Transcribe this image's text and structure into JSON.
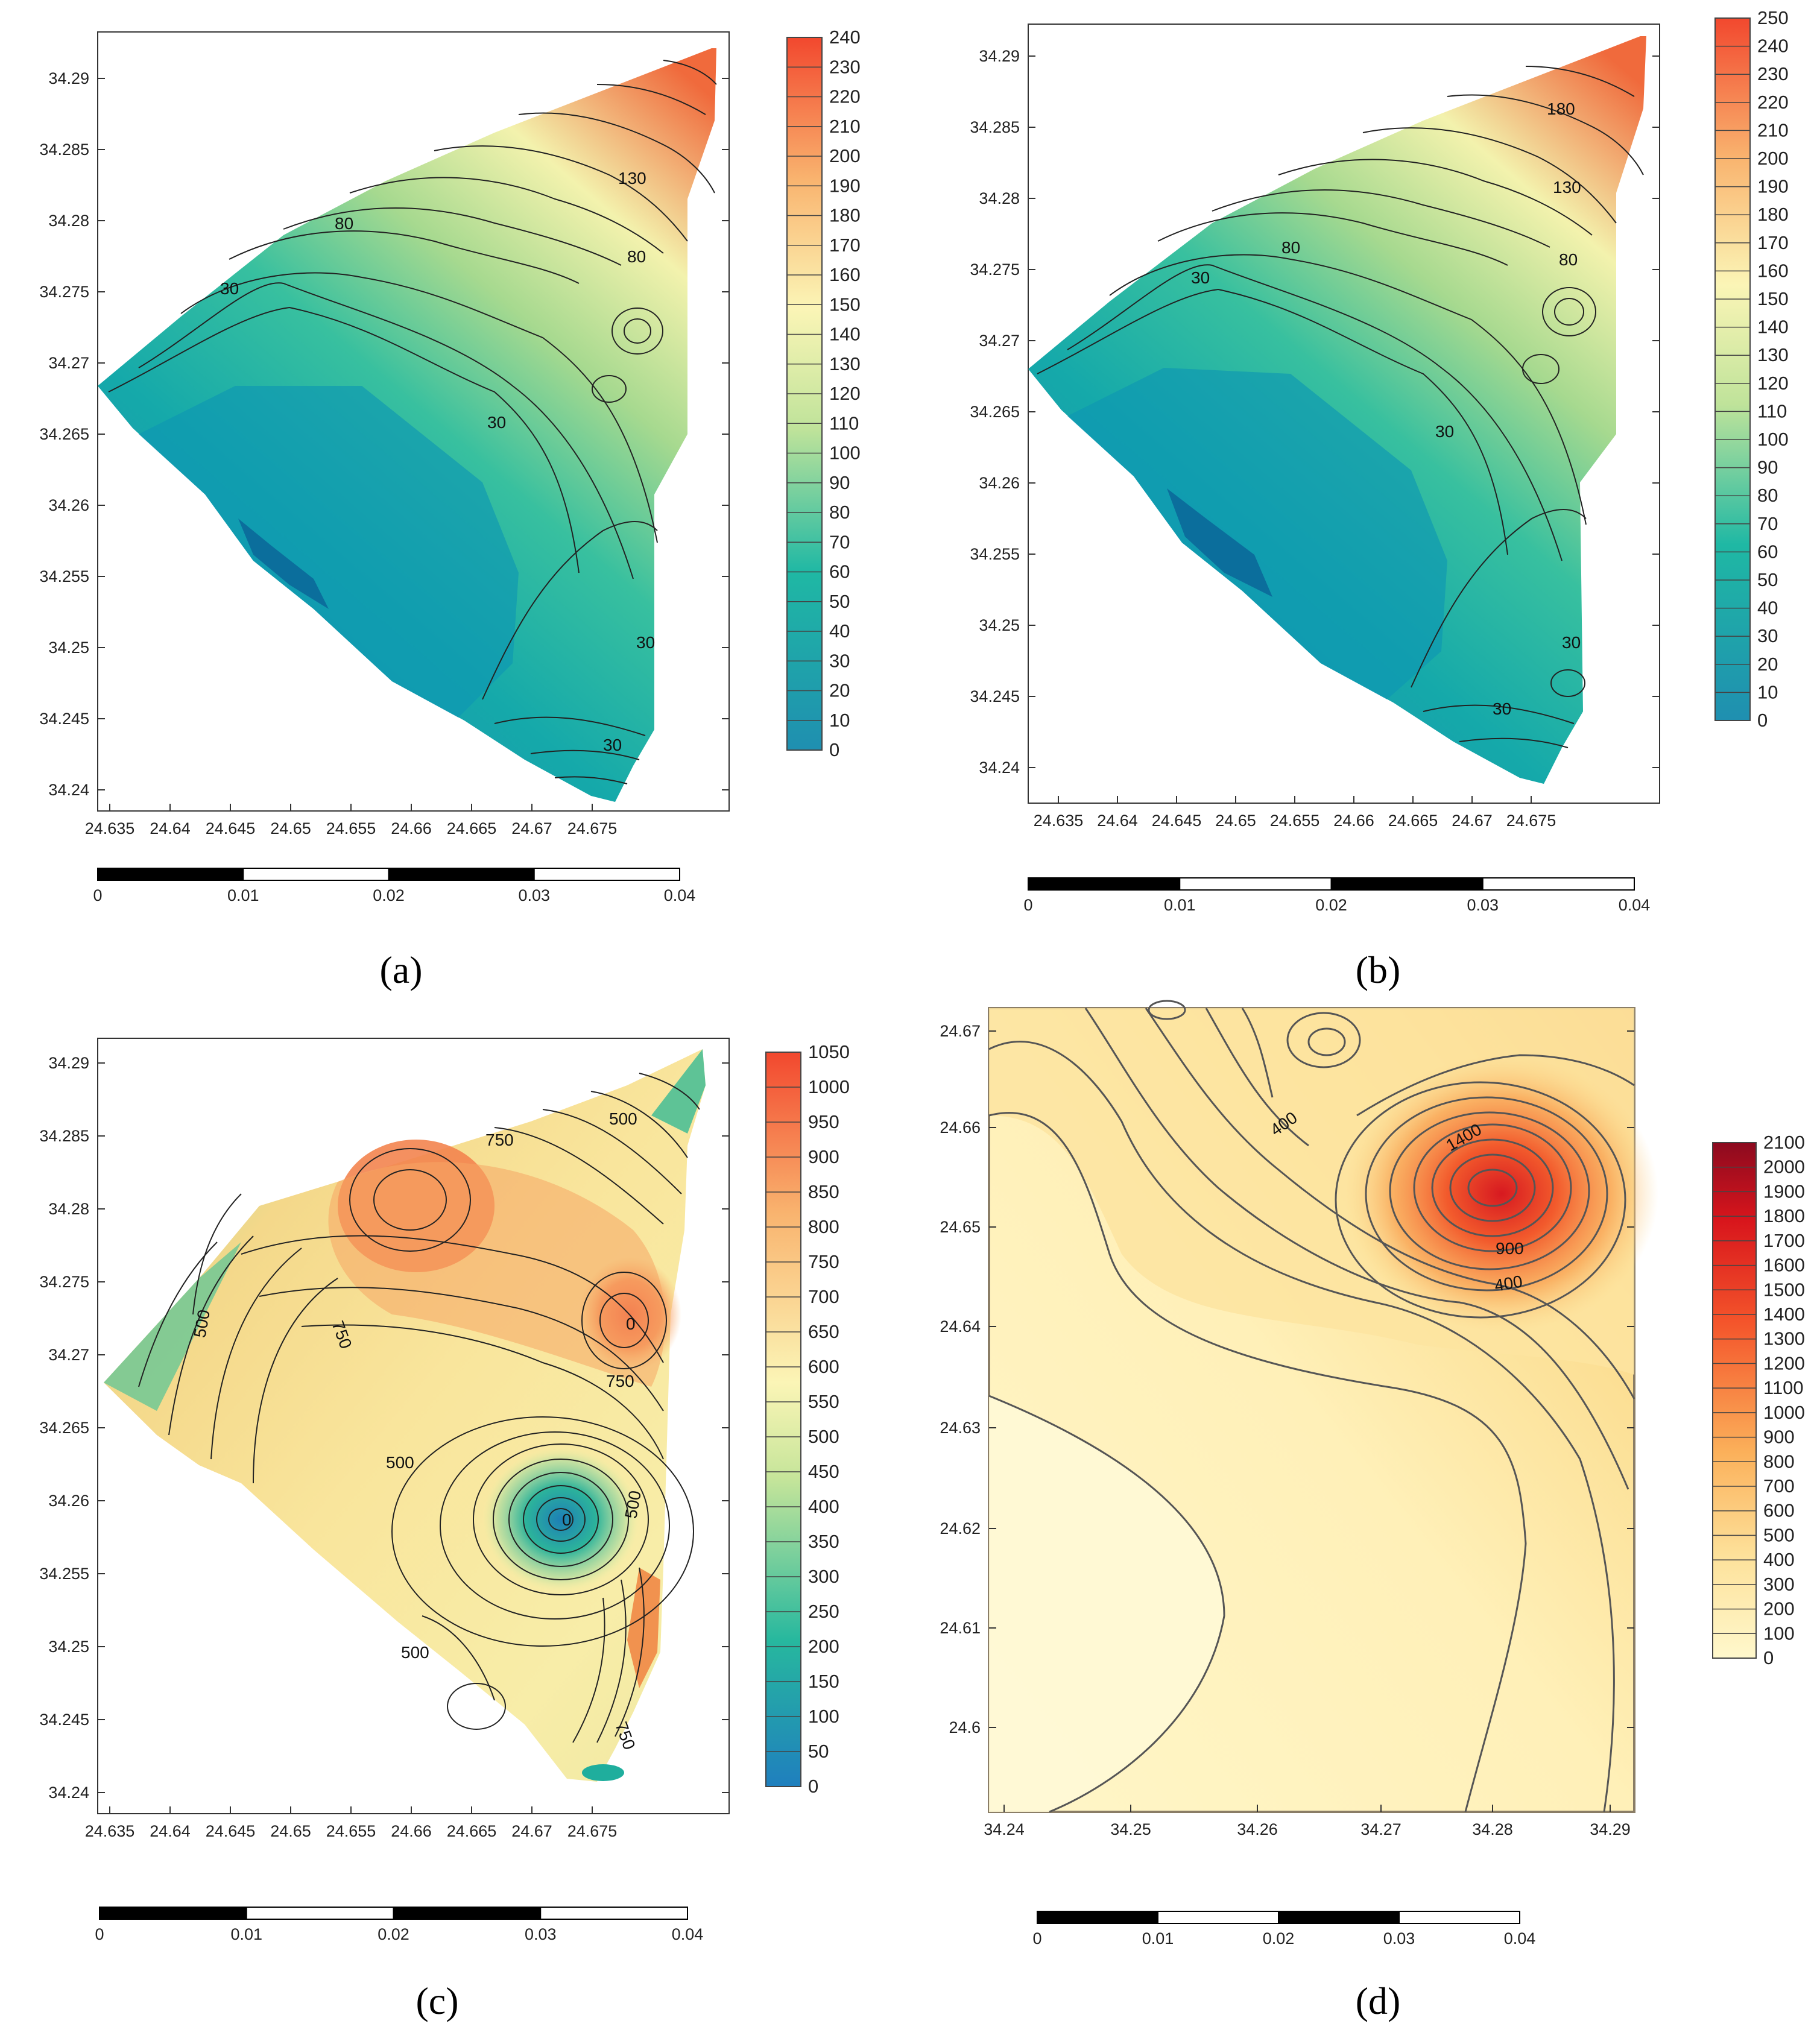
{
  "chart_data": [
    {
      "type": "contour",
      "panel": "a",
      "x_ticks": [
        "24.635",
        "24.64",
        "24.645",
        "24.65",
        "24.655",
        "24.66",
        "24.665",
        "24.67",
        "24.675"
      ],
      "y_ticks": [
        "34.24",
        "34.245",
        "34.25",
        "34.255",
        "34.26",
        "34.265",
        "34.27",
        "34.275",
        "34.28",
        "34.285",
        "34.29"
      ],
      "colorbar_ticks": [
        "0",
        "10",
        "20",
        "30",
        "40",
        "50",
        "60",
        "70",
        "80",
        "90",
        "100",
        "110",
        "120",
        "130",
        "140",
        "150",
        "160",
        "170",
        "180",
        "190",
        "200",
        "210",
        "220",
        "230",
        "240"
      ],
      "contour_labels": [
        "80",
        "130",
        "80",
        "30",
        "30",
        "30",
        "30"
      ],
      "scale_ticks": [
        "0",
        "0.01",
        "0.02",
        "0.03",
        "0.04"
      ]
    },
    {
      "type": "contour",
      "panel": "b",
      "x_ticks": [
        "24.635",
        "24.64",
        "24.645",
        "24.65",
        "24.655",
        "24.66",
        "24.665",
        "24.67",
        "24.675"
      ],
      "y_ticks": [
        "34.24",
        "34.245",
        "34.25",
        "34.255",
        "34.26",
        "34.265",
        "34.27",
        "34.275",
        "34.28",
        "34.285",
        "34.29"
      ],
      "colorbar_ticks": [
        "0",
        "10",
        "20",
        "30",
        "40",
        "50",
        "60",
        "70",
        "80",
        "90",
        "100",
        "110",
        "120",
        "130",
        "140",
        "150",
        "160",
        "170",
        "180",
        "190",
        "200",
        "210",
        "220",
        "230",
        "240",
        "250"
      ],
      "contour_labels": [
        "180",
        "130",
        "80",
        "80",
        "30",
        "30",
        "30",
        "30"
      ],
      "scale_ticks": [
        "0",
        "0.01",
        "0.02",
        "0.03",
        "0.04"
      ]
    },
    {
      "type": "contour",
      "panel": "c",
      "x_ticks": [
        "24.635",
        "24.64",
        "24.645",
        "24.65",
        "24.655",
        "24.66",
        "24.665",
        "24.67",
        "24.675"
      ],
      "y_ticks": [
        "34.24",
        "34.245",
        "34.25",
        "34.255",
        "34.26",
        "34.265",
        "34.27",
        "34.275",
        "34.28",
        "34.285",
        "34.29"
      ],
      "colorbar_ticks": [
        "0",
        "50",
        "100",
        "150",
        "200",
        "250",
        "300",
        "350",
        "400",
        "450",
        "500",
        "550",
        "600",
        "650",
        "700",
        "750",
        "800",
        "850",
        "900",
        "950",
        "1000",
        "1050"
      ],
      "contour_labels": [
        "500",
        "750",
        "750",
        "500",
        "750",
        "500",
        "500",
        "500",
        "750",
        "0",
        "0"
      ],
      "scale_ticks": [
        "0",
        "0.01",
        "0.02",
        "0.03",
        "0.04"
      ]
    },
    {
      "type": "contour",
      "panel": "d",
      "x_ticks": [
        "34.24",
        "34.25",
        "34.26",
        "34.27",
        "34.28",
        "34.29"
      ],
      "y_ticks": [
        "24.6",
        "24.61",
        "24.62",
        "24.63",
        "24.64",
        "24.65",
        "24.66",
        "24.67"
      ],
      "colorbar_ticks": [
        "0",
        "100",
        "200",
        "300",
        "400",
        "500",
        "600",
        "700",
        "800",
        "900",
        "1000",
        "1100",
        "1200",
        "1300",
        "1400",
        "1500",
        "1600",
        "1700",
        "1800",
        "1900",
        "2000",
        "2100"
      ],
      "contour_labels": [
        "400",
        "1400",
        "900",
        "400"
      ],
      "scale_ticks": [
        "0",
        "0.01",
        "0.02",
        "0.03",
        "0.04"
      ]
    }
  ],
  "panel_labels": {
    "a": "(a)",
    "b": "(b)",
    "c": "(c)",
    "d": "(d)"
  }
}
